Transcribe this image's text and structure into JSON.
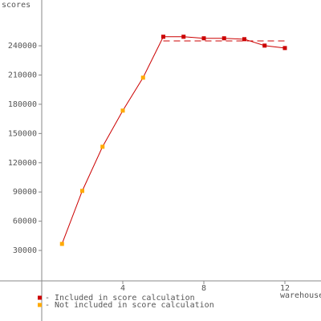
{
  "chart_data": {
    "type": "line",
    "y_label": "scores",
    "x_label": "warehouses",
    "x": [
      1,
      2,
      3,
      4,
      5,
      6,
      7,
      8,
      9,
      10,
      11,
      12
    ],
    "series": [
      {
        "name": "- Included in score calculation",
        "color": "#cc0000",
        "values": [
          null,
          null,
          null,
          null,
          null,
          249300,
          249300,
          247700,
          247700,
          246800,
          240200,
          237700
        ]
      },
      {
        "name": "- Not included in score calculation",
        "color": "#ffaa00",
        "values": [
          36700,
          91100,
          136400,
          173500,
          207300,
          null,
          null,
          null,
          null,
          null,
          null,
          null
        ]
      }
    ],
    "line_color": "#cc0000",
    "score_line": {
      "value": 245000,
      "x": [
        6,
        12
      ]
    },
    "xlim": [
      0,
      13.7
    ],
    "ylim": [
      0,
      287000
    ],
    "xticks": [
      4,
      8,
      12
    ],
    "yticks": [
      30000,
      60000,
      90000,
      120000,
      150000,
      180000,
      210000,
      240000
    ]
  }
}
